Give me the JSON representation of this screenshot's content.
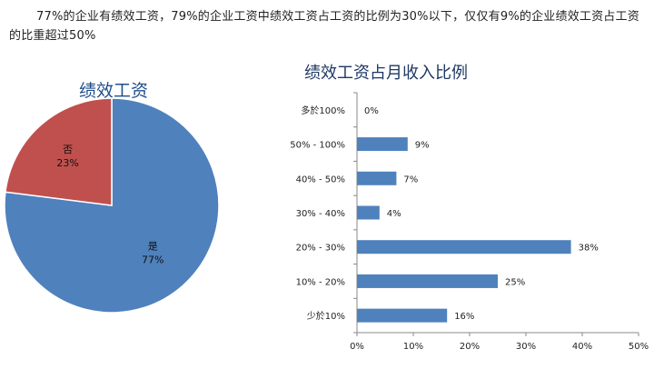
{
  "intro": "77%的企业有绩效工资，79%的企业工资中绩效工资占工资的比例为30%以下，仅仅有9%的企业绩效工资占工资的比重超过50%",
  "colors": {
    "pie_yes": "#4f81bd",
    "pie_no": "#c0504d",
    "bar": "#4f81bd",
    "pie_title": "#1f4e8c",
    "bar_title": "#1f3864"
  },
  "chart_data": [
    {
      "type": "pie",
      "title": "绩效工资",
      "slices": [
        {
          "name": "是",
          "value": 77,
          "label": "77%"
        },
        {
          "name": "否",
          "value": 23,
          "label": "23%"
        }
      ]
    },
    {
      "type": "bar",
      "orientation": "horizontal",
      "title": "绩效工资占月收入比例",
      "categories": [
        "多於100%",
        "50% - 100%",
        "40% - 50%",
        "30% - 40%",
        "20% - 30%",
        "10% - 20%",
        "少於10%"
      ],
      "values": [
        0,
        9,
        7,
        4,
        38,
        25,
        16
      ],
      "value_labels": [
        "0%",
        "9%",
        "7%",
        "4%",
        "38%",
        "25%",
        "16%"
      ],
      "xlim": [
        0,
        50
      ],
      "xticks": [
        "0%",
        "10%",
        "20%",
        "30%",
        "40%",
        "50%"
      ],
      "grid": false
    }
  ]
}
